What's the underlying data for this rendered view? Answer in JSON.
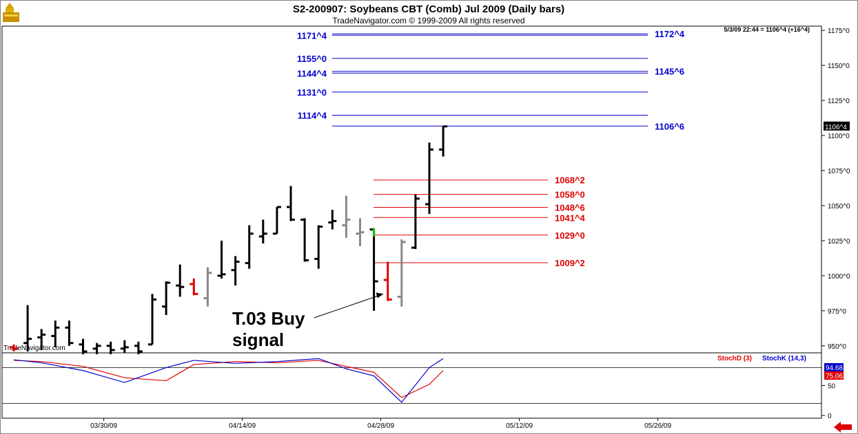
{
  "header": {
    "title": "S2-200907:  Soybeans CBT (Comb) Jul 2009  (Daily bars)",
    "copyright": "TradeNavigator.com © 1999-2009 All rights reserved",
    "timestamp": "5/3/09 22:44 = 1106^4 (+16^4)",
    "logo_text": "TradeNavigator.com"
  },
  "colors": {
    "bar": "#000000",
    "bar_gray": "#888888",
    "bar_red": "#e00000",
    "bar_green": "#00cc00",
    "blue_level": "#0000cc",
    "red_level": "#e00000",
    "stoch_d": "#e00000",
    "stoch_k": "#0000cc"
  },
  "chart_data": [
    {
      "type": "ohlc",
      "y_range": [
        945,
        1178
      ],
      "x_range": [
        0,
        56
      ],
      "y_tick_labels": [
        "1175^0",
        "1150^0",
        "1125^0",
        "1100^0",
        "1075^0",
        "1050^0",
        "1025^0",
        "1000^0",
        "975^0",
        "950^0"
      ],
      "y_tick_values": [
        1175,
        1150,
        1125,
        1100,
        1075,
        1050,
        1025,
        1000,
        975,
        950
      ],
      "x_tick_labels": [
        "03/30/09",
        "04/14/09",
        "04/28/09",
        "05/12/09",
        "05/26/09"
      ],
      "x_tick_values": [
        6,
        16,
        26,
        36,
        46
      ],
      "last_price_label": "1106^4",
      "last_price_value": 1106.5,
      "bars": [
        {
          "x": 0,
          "o": 949,
          "h": 951,
          "l": 946,
          "c": 948,
          "color": "red"
        },
        {
          "x": 1,
          "o": 952,
          "h": 979,
          "l": 946,
          "c": 955,
          "color": "black"
        },
        {
          "x": 2,
          "o": 956,
          "h": 962,
          "l": 947,
          "c": 958,
          "color": "black"
        },
        {
          "x": 3,
          "o": 957,
          "h": 968,
          "l": 949,
          "c": 963,
          "color": "black"
        },
        {
          "x": 4,
          "o": 963,
          "h": 968,
          "l": 950,
          "c": 952,
          "color": "black"
        },
        {
          "x": 5,
          "o": 951,
          "h": 955,
          "l": 944,
          "c": 946,
          "color": "black"
        },
        {
          "x": 6,
          "o": 948,
          "h": 952,
          "l": 944,
          "c": 950,
          "color": "black"
        },
        {
          "x": 7,
          "o": 950,
          "h": 953,
          "l": 944,
          "c": 947,
          "color": "black"
        },
        {
          "x": 8,
          "o": 948,
          "h": 954,
          "l": 945,
          "c": 949,
          "color": "black"
        },
        {
          "x": 9,
          "o": 950,
          "h": 953,
          "l": 944,
          "c": 946,
          "color": "black"
        },
        {
          "x": 10,
          "o": 951,
          "h": 987,
          "l": 951,
          "c": 983,
          "color": "black"
        },
        {
          "x": 11,
          "o": 978,
          "h": 996,
          "l": 972,
          "c": 995,
          "color": "black"
        },
        {
          "x": 12,
          "o": 993,
          "h": 1008,
          "l": 985,
          "c": 992,
          "color": "black"
        },
        {
          "x": 13,
          "o": 994,
          "h": 998,
          "l": 986,
          "c": 987,
          "color": "red"
        },
        {
          "x": 14,
          "o": 984,
          "h": 1006,
          "l": 978,
          "c": 1002,
          "color": "gray"
        },
        {
          "x": 15,
          "o": 1000,
          "h": 1025,
          "l": 998,
          "c": 1001,
          "color": "black"
        },
        {
          "x": 16,
          "o": 1004,
          "h": 1014,
          "l": 993,
          "c": 1010,
          "color": "black"
        },
        {
          "x": 17,
          "o": 1009,
          "h": 1036,
          "l": 1005,
          "c": 1030,
          "color": "black"
        },
        {
          "x": 18,
          "o": 1028,
          "h": 1040,
          "l": 1023,
          "c": 1030,
          "color": "black"
        },
        {
          "x": 19,
          "o": 1030,
          "h": 1049,
          "l": 1030,
          "c": 1049,
          "color": "black"
        },
        {
          "x": 20,
          "o": 1049,
          "h": 1064,
          "l": 1039,
          "c": 1040,
          "color": "black"
        },
        {
          "x": 21,
          "o": 1040,
          "h": 1041,
          "l": 1010,
          "c": 1011,
          "color": "black"
        },
        {
          "x": 22,
          "o": 1012,
          "h": 1036,
          "l": 1005,
          "c": 1035,
          "color": "black"
        },
        {
          "x": 23,
          "o": 1038,
          "h": 1047,
          "l": 1033,
          "c": 1039,
          "color": "black"
        },
        {
          "x": 24,
          "o": 1036,
          "h": 1057,
          "l": 1027,
          "c": 1040,
          "color": "gray"
        },
        {
          "x": 25,
          "o": 1030,
          "h": 1041,
          "l": 1021,
          "c": 1031,
          "color": "gray"
        },
        {
          "x": 26,
          "o": 1033,
          "h": 1032,
          "l": 975,
          "c": 996,
          "color": "black"
        },
        {
          "x": 27,
          "o": 997,
          "h": 1010,
          "l": 982,
          "c": 983,
          "color": "red"
        },
        {
          "x": 28,
          "o": 985,
          "h": 1026,
          "l": 978,
          "c": 1024,
          "color": "gray"
        },
        {
          "x": 29,
          "o": 1020,
          "h": 1058,
          "l": 1019,
          "c": 1055,
          "color": "black"
        },
        {
          "x": 30,
          "o": 1051,
          "h": 1095,
          "l": 1044,
          "c": 1090,
          "color": "black"
        },
        {
          "x": 31,
          "o": 1090,
          "h": 1107,
          "l": 1085,
          "c": 1106.5,
          "color": "black"
        }
      ],
      "green_tick": {
        "x": 26,
        "from": 1028,
        "to": 1034
      },
      "levels_blue": [
        {
          "label": "1171^4",
          "value": 1171.5,
          "side": "left"
        },
        {
          "label": "1172^4",
          "value": 1172.5,
          "side": "right"
        },
        {
          "label": "1155^0",
          "value": 1155,
          "side": "left"
        },
        {
          "label": "1144^4",
          "value": 1144.5,
          "side": "left"
        },
        {
          "label": "1145^6",
          "value": 1145.75,
          "side": "right"
        },
        {
          "label": "1131^0",
          "value": 1131,
          "side": "left"
        },
        {
          "label": "1114^4",
          "value": 1114.5,
          "side": "left"
        },
        {
          "label": "1106^6",
          "value": 1106.75,
          "side": "right"
        }
      ],
      "levels_red": [
        {
          "label": "1068^2",
          "value": 1068.25
        },
        {
          "label": "1058^0",
          "value": 1058
        },
        {
          "label": "1048^6",
          "value": 1048.75
        },
        {
          "label": "1041^4",
          "value": 1041.5
        },
        {
          "label": "1029^0",
          "value": 1029
        },
        {
          "label": "1009^2",
          "value": 1009.25
        }
      ],
      "annotation": {
        "line1": "T.03 Buy",
        "line2": "signal",
        "target_x": 26.7,
        "target_y": 987
      }
    },
    {
      "type": "line",
      "y_range": [
        0,
        100
      ],
      "reference_lines": [
        80,
        20
      ],
      "y_tick_labels": [
        "50",
        "0"
      ],
      "y_tick_values": [
        50,
        0
      ],
      "legend": [
        {
          "name": "StochD (3)",
          "color": "red"
        },
        {
          "name": "StochK (14,3)",
          "color": "blue"
        }
      ],
      "readouts": [
        {
          "label": "94.68",
          "value": 94.68,
          "color": "#0000cc"
        },
        {
          "label": "75.06",
          "value": 75.06,
          "color": "#e00000"
        }
      ],
      "series": [
        {
          "name": "StochD (3)",
          "x": [
            0,
            2,
            5,
            8,
            11,
            13,
            16,
            19,
            22,
            24,
            26,
            28,
            30,
            31
          ],
          "values": [
            92,
            90,
            82,
            63,
            58,
            85,
            90,
            88,
            92,
            82,
            72,
            30,
            52,
            75
          ]
        },
        {
          "name": "StochK (14,3)",
          "x": [
            0,
            2,
            5,
            8,
            11,
            13,
            16,
            19,
            22,
            24,
            26,
            28,
            30,
            31
          ],
          "values": [
            93,
            88,
            75,
            55,
            80,
            92,
            87,
            90,
            95,
            78,
            66,
            22,
            80,
            95
          ]
        }
      ]
    }
  ]
}
